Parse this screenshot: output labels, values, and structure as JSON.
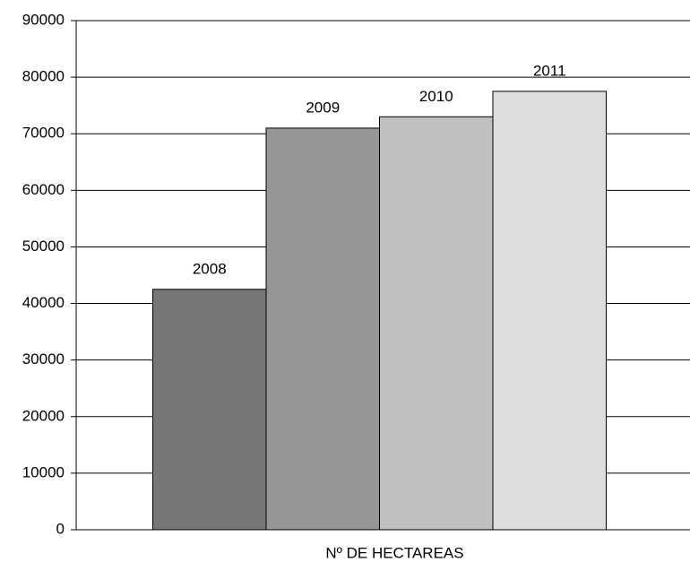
{
  "chart_data": {
    "type": "bar",
    "categories": [
      "Nº DE HECTAREAS"
    ],
    "series": [
      {
        "name": "2008",
        "color": "#777777",
        "values": [
          42500
        ]
      },
      {
        "name": "2009",
        "color": "#969696",
        "values": [
          71000
        ]
      },
      {
        "name": "2010",
        "color": "#c0c0c0",
        "values": [
          73000
        ]
      },
      {
        "name": "2011",
        "color": "#dddddd",
        "values": [
          77500
        ]
      }
    ],
    "ylim": [
      0,
      90000
    ],
    "yticks": [
      0,
      10000,
      20000,
      30000,
      40000,
      50000,
      60000,
      70000,
      80000,
      90000
    ],
    "grid": true
  }
}
